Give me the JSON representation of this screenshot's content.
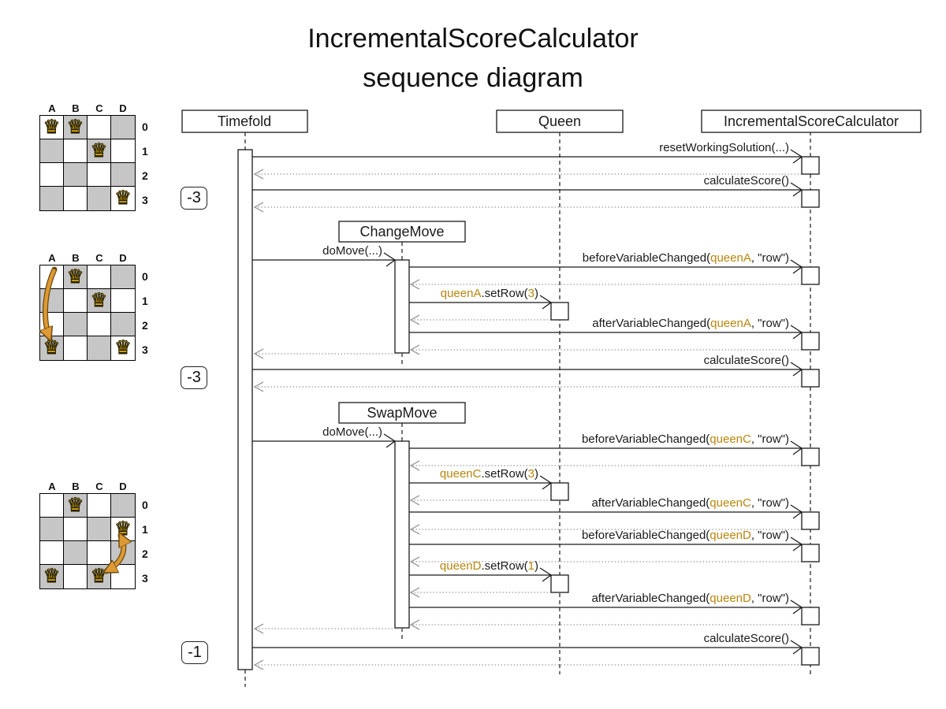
{
  "title": {
    "line1": "IncrementalScoreCalculator",
    "line2": "sequence diagram"
  },
  "colors": {
    "highlight": "#b8860b",
    "board_dark_cell": "#c6c6c6",
    "move_arrow": "#dd9933",
    "return_line": "#9c9c9c"
  },
  "icons": {
    "queen": "♛"
  },
  "board_labels": {
    "columns": [
      "A",
      "B",
      "C",
      "D"
    ],
    "rows": [
      "0",
      "1",
      "2",
      "3"
    ]
  },
  "boards": [
    {
      "queens": [
        "A0",
        "B0",
        "C1",
        "D3"
      ]
    },
    {
      "queens": [
        "B0",
        "C1",
        "A3",
        "D3"
      ]
    },
    {
      "queens": [
        "B0",
        "D1",
        "A3",
        "C3"
      ]
    }
  ],
  "scores": [
    "-3",
    "-3",
    "-1"
  ],
  "lifelines": [
    {
      "label": "Timefold"
    },
    {
      "label": "Queen"
    },
    {
      "label": "IncrementalScoreCalculator"
    }
  ],
  "fragments": [
    {
      "label": "ChangeMove"
    },
    {
      "label": "SwapMove"
    }
  ],
  "messages": [
    {
      "id": "resetWorkingSolution",
      "from": "Timefold",
      "to": "IncrementalScoreCalculator",
      "parts": [
        {
          "t": "resetWorkingSolution(...)",
          "hl": false
        }
      ]
    },
    {
      "id": "calculateScore-1",
      "from": "Timefold",
      "to": "IncrementalScoreCalculator",
      "parts": [
        {
          "t": "calculateScore()",
          "hl": false
        }
      ]
    },
    {
      "id": "doMove-1",
      "from": "Timefold",
      "to": "ChangeMove",
      "parts": [
        {
          "t": "doMove(...)",
          "hl": false
        }
      ]
    },
    {
      "id": "beforeVariableChanged-queenA",
      "from": "ChangeMove",
      "to": "IncrementalScoreCalculator",
      "parts": [
        {
          "t": "beforeVariableChanged(",
          "hl": false
        },
        {
          "t": "queenA",
          "hl": true
        },
        {
          "t": ", \"row\")",
          "hl": false
        }
      ]
    },
    {
      "id": "setRow-queenA",
      "from": "ChangeMove",
      "to": "Queen",
      "parts": [
        {
          "t": "queenA",
          "hl": true
        },
        {
          "t": ".setRow(",
          "hl": false
        },
        {
          "t": "3",
          "hl": true
        },
        {
          "t": ")",
          "hl": false
        }
      ]
    },
    {
      "id": "afterVariableChanged-queenA",
      "from": "ChangeMove",
      "to": "IncrementalScoreCalculator",
      "parts": [
        {
          "t": "afterVariableChanged(",
          "hl": false
        },
        {
          "t": "queenA",
          "hl": true
        },
        {
          "t": ", \"row\")",
          "hl": false
        }
      ]
    },
    {
      "id": "calculateScore-2",
      "from": "Timefold",
      "to": "IncrementalScoreCalculator",
      "parts": [
        {
          "t": "calculateScore()",
          "hl": false
        }
      ]
    },
    {
      "id": "doMove-2",
      "from": "Timefold",
      "to": "SwapMove",
      "parts": [
        {
          "t": "doMove(...)",
          "hl": false
        }
      ]
    },
    {
      "id": "beforeVariableChanged-queenC",
      "from": "SwapMove",
      "to": "IncrementalScoreCalculator",
      "parts": [
        {
          "t": "beforeVariableChanged(",
          "hl": false
        },
        {
          "t": "queenC",
          "hl": true
        },
        {
          "t": ", \"row\")",
          "hl": false
        }
      ]
    },
    {
      "id": "setRow-queenC",
      "from": "SwapMove",
      "to": "Queen",
      "parts": [
        {
          "t": "queenC",
          "hl": true
        },
        {
          "t": ".setRow(",
          "hl": false
        },
        {
          "t": "3",
          "hl": true
        },
        {
          "t": ")",
          "hl": false
        }
      ]
    },
    {
      "id": "afterVariableChanged-queenC",
      "from": "SwapMove",
      "to": "IncrementalScoreCalculator",
      "parts": [
        {
          "t": "afterVariableChanged(",
          "hl": false
        },
        {
          "t": "queenC",
          "hl": true
        },
        {
          "t": ", \"row\")",
          "hl": false
        }
      ]
    },
    {
      "id": "beforeVariableChanged-queenD",
      "from": "SwapMove",
      "to": "IncrementalScoreCalculator",
      "parts": [
        {
          "t": "beforeVariableChanged(",
          "hl": false
        },
        {
          "t": "queenD",
          "hl": true
        },
        {
          "t": ", \"row\")",
          "hl": false
        }
      ]
    },
    {
      "id": "setRow-queenD",
      "from": "SwapMove",
      "to": "Queen",
      "parts": [
        {
          "t": "queenD",
          "hl": true
        },
        {
          "t": ".setRow(",
          "hl": false
        },
        {
          "t": "1",
          "hl": true
        },
        {
          "t": ")",
          "hl": false
        }
      ]
    },
    {
      "id": "afterVariableChanged-queenD",
      "from": "SwapMove",
      "to": "IncrementalScoreCalculator",
      "parts": [
        {
          "t": "afterVariableChanged(",
          "hl": false
        },
        {
          "t": "queenD",
          "hl": true
        },
        {
          "t": ", \"row\")",
          "hl": false
        }
      ]
    },
    {
      "id": "calculateScore-3",
      "from": "Timefold",
      "to": "IncrementalScoreCalculator",
      "parts": [
        {
          "t": "calculateScore()",
          "hl": false
        }
      ]
    }
  ]
}
